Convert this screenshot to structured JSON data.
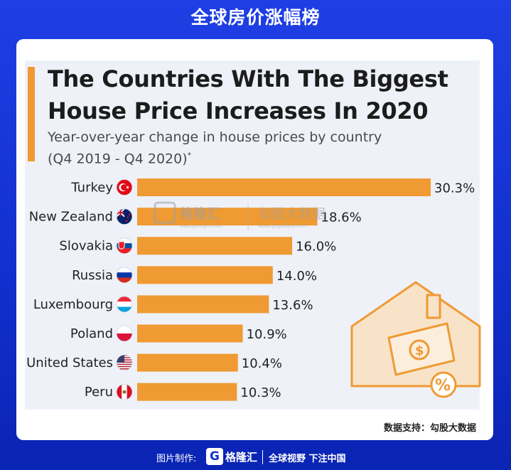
{
  "header": {
    "title": "全球房价涨幅榜"
  },
  "chart_data": {
    "type": "bar",
    "orientation": "horizontal",
    "title": "The Countries With The Biggest House Price Increases In 2020",
    "subtitle_line1": "Year-over-year change in house prices by country",
    "subtitle_line2": "(Q4 2019 - Q4 2020)",
    "footnote_mark": "*",
    "categories": [
      "Turkey",
      "New Zealand",
      "Slovakia",
      "Russia",
      "Luxembourg",
      "Poland",
      "United States",
      "Peru"
    ],
    "values": [
      30.3,
      18.6,
      16.0,
      14.0,
      13.6,
      10.9,
      10.4,
      10.3
    ],
    "value_labels": [
      "30.3%",
      "18.6%",
      "16.0%",
      "14.0%",
      "13.6%",
      "10.9%",
      "10.4%",
      "10.3%"
    ],
    "xlim": [
      0,
      30.3
    ],
    "bar_color": "#ef9a33",
    "flags": [
      "turkey-flag-icon",
      "new-zealand-flag-icon",
      "slovakia-flag-icon",
      "russia-flag-icon",
      "luxembourg-flag-icon",
      "poland-flag-icon",
      "united-states-flag-icon",
      "peru-flag-icon"
    ],
    "grid": false
  },
  "watermark": {
    "brand": "格隆汇",
    "brand_url": "www.gelonghui.com",
    "partner": "勾股大数据",
    "partner_url": "www.gogudata.com"
  },
  "credit": "数据支持：勾股大数据",
  "footer": {
    "label": "图片制作:",
    "logo_letter": "G",
    "brand": "格隆汇",
    "slogan": "全球视野 下注中国"
  }
}
